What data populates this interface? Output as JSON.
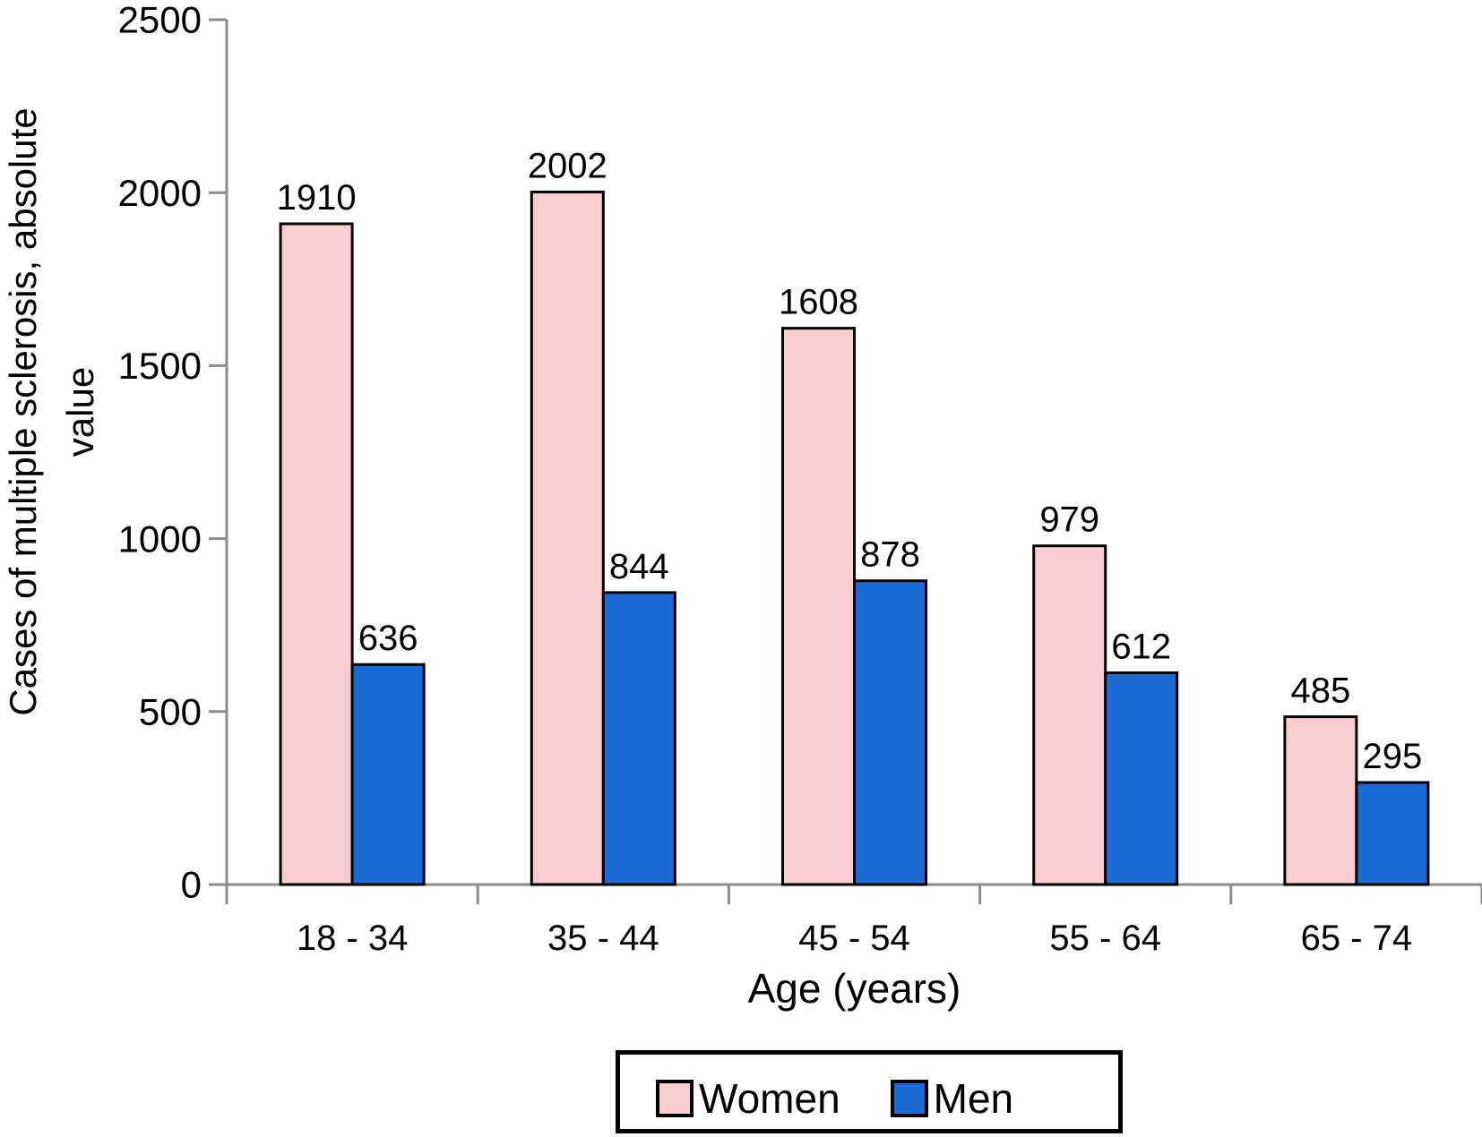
{
  "chart_data": {
    "type": "bar",
    "xlabel": "Age (years)",
    "ylabel": "Cases of multiple sclerosis, absolute value",
    "ylabel_lines": [
      "Cases of multiple sclerosis, absolute",
      "value"
    ],
    "categories": [
      "18 - 34",
      "35 - 44",
      "45 - 54",
      "55 - 64",
      "65 - 74"
    ],
    "series": [
      {
        "name": "Women",
        "color": "#FACDD2",
        "values": [
          1910,
          2002,
          1608,
          979,
          485
        ]
      },
      {
        "name": "Men",
        "color": "#1C6BD4",
        "values": [
          636,
          844,
          878,
          612,
          295
        ]
      }
    ],
    "ylim": [
      0,
      2500
    ],
    "yticks": [
      "0",
      "500",
      "1000",
      "1500",
      "2000",
      "2500"
    ],
    "value_labels_shown": true,
    "grid": false,
    "legend_position": "bottom-center",
    "colors": {
      "women_fill": "#FACDD2",
      "men_fill": "#1C6BD4",
      "bar_outline": "#000000",
      "axis": "#8C8C8C",
      "text": "#000000",
      "background": "#FFFFFF",
      "legend_border": "#000000"
    }
  }
}
